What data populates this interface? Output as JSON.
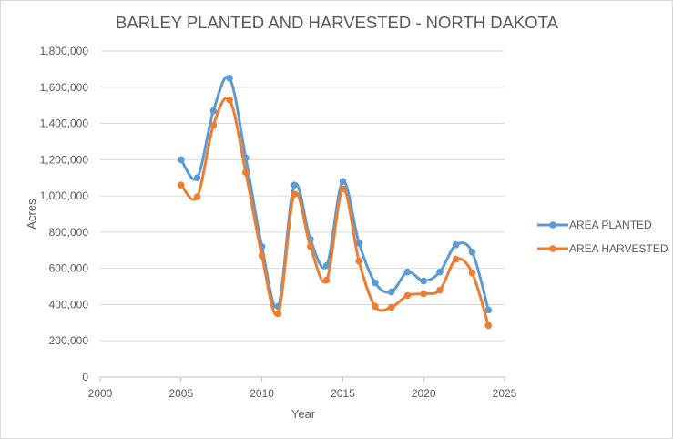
{
  "chart_data": {
    "type": "line",
    "title": "BARLEY PLANTED AND HARVESTED - NORTH DAKOTA",
    "xlabel": "Year",
    "ylabel": "Acres",
    "xlim": [
      2000,
      2025
    ],
    "ylim": [
      0,
      1800000
    ],
    "x_ticks": [
      2000,
      2005,
      2010,
      2015,
      2020,
      2025
    ],
    "x_tick_labels": [
      "2000",
      "2005",
      "2010",
      "2015",
      "2020",
      "2025"
    ],
    "y_ticks": [
      0,
      200000,
      400000,
      600000,
      800000,
      1000000,
      1200000,
      1400000,
      1600000,
      1800000
    ],
    "y_tick_labels": [
      "0",
      "200,000",
      "400,000",
      "600,000",
      "800,000",
      "1,000,000",
      "1,200,000",
      "1,400,000",
      "1,600,000",
      "1,800,000"
    ],
    "grid": "horizontal",
    "legend_position": "right",
    "smooth": true,
    "x": [
      2005,
      2006,
      2007,
      2008,
      2009,
      2010,
      2011,
      2012,
      2013,
      2014,
      2015,
      2016,
      2017,
      2018,
      2019,
      2020,
      2021,
      2022,
      2023,
      2024
    ],
    "series": [
      {
        "name": "AREA PLANTED",
        "color": "#5b9bd5",
        "values": [
          1200000,
          1100000,
          1470000,
          1650000,
          1210000,
          720000,
          390000,
          1060000,
          760000,
          615000,
          1080000,
          740000,
          520000,
          470000,
          580000,
          530000,
          580000,
          730000,
          690000,
          370000
        ]
      },
      {
        "name": "AREA HARVESTED",
        "color": "#ed7d31",
        "values": [
          1060000,
          995000,
          1390000,
          1530000,
          1130000,
          670000,
          350000,
          1010000,
          720000,
          535000,
          1040000,
          640000,
          390000,
          385000,
          450000,
          460000,
          480000,
          650000,
          575000,
          285000
        ]
      }
    ]
  }
}
